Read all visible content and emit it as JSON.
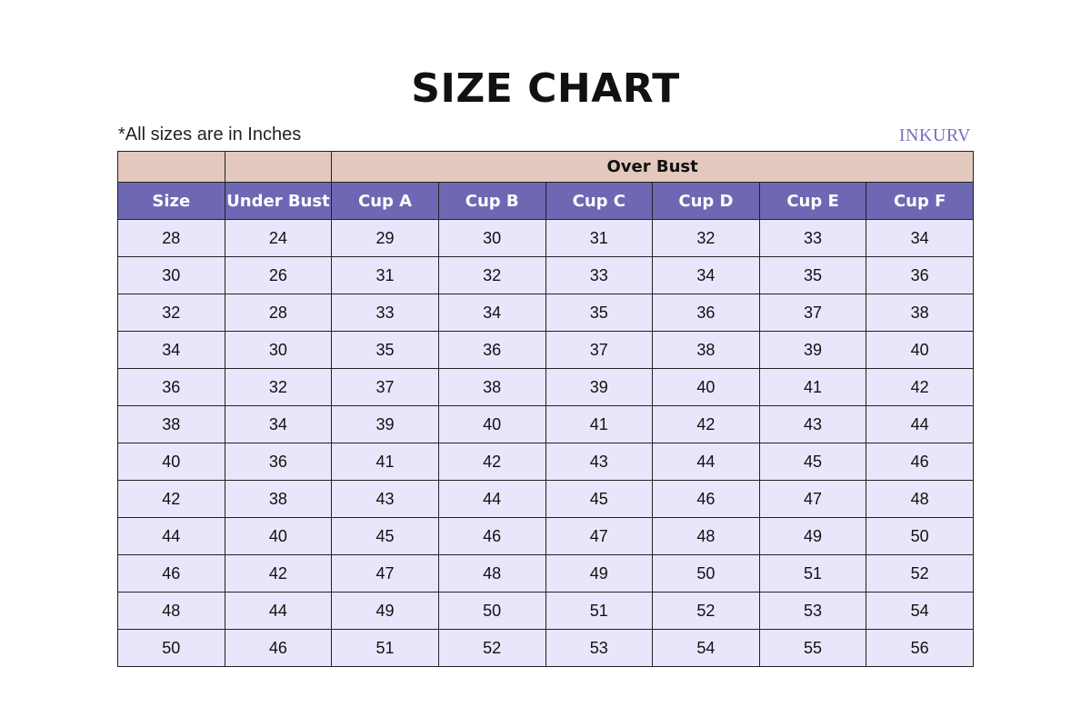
{
  "title": "SIZE CHART",
  "note": "*All sizes are in Inches",
  "logo": "INKURV",
  "colors": {
    "group_header": "#e2c8bd",
    "column_header": "#6e68b4",
    "row_bg": "#e8e6fb"
  },
  "table": {
    "group_header": "Over Bust",
    "columns": [
      "Size",
      "Under Bust",
      "Cup A",
      "Cup B",
      "Cup C",
      "Cup D",
      "Cup E",
      "Cup F"
    ],
    "rows": [
      [
        "28",
        "24",
        "29",
        "30",
        "31",
        "32",
        "33",
        "34"
      ],
      [
        "30",
        "26",
        "31",
        "32",
        "33",
        "34",
        "35",
        "36"
      ],
      [
        "32",
        "28",
        "33",
        "34",
        "35",
        "36",
        "37",
        "38"
      ],
      [
        "34",
        "30",
        "35",
        "36",
        "37",
        "38",
        "39",
        "40"
      ],
      [
        "36",
        "32",
        "37",
        "38",
        "39",
        "40",
        "41",
        "42"
      ],
      [
        "38",
        "34",
        "39",
        "40",
        "41",
        "42",
        "43",
        "44"
      ],
      [
        "40",
        "36",
        "41",
        "42",
        "43",
        "44",
        "45",
        "46"
      ],
      [
        "42",
        "38",
        "43",
        "44",
        "45",
        "46",
        "47",
        "48"
      ],
      [
        "44",
        "40",
        "45",
        "46",
        "47",
        "48",
        "49",
        "50"
      ],
      [
        "46",
        "42",
        "47",
        "48",
        "49",
        "50",
        "51",
        "52"
      ],
      [
        "48",
        "44",
        "49",
        "50",
        "51",
        "52",
        "53",
        "54"
      ],
      [
        "50",
        "46",
        "51",
        "52",
        "53",
        "54",
        "55",
        "56"
      ]
    ]
  }
}
